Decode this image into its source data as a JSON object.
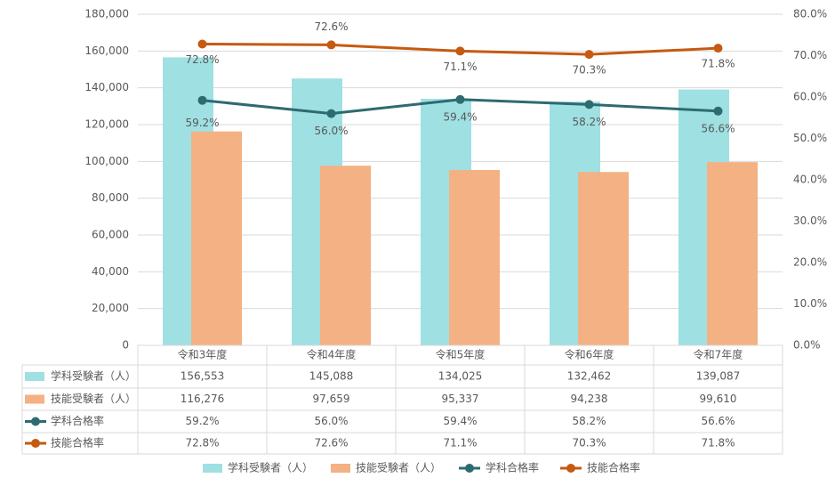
{
  "chart_data": {
    "type": "bar_line_table",
    "categories": [
      "令和3年度",
      "令和4年度",
      "令和5年度",
      "令和6年度",
      "令和7年度"
    ],
    "series": [
      {
        "name": "学科受験者（人）",
        "type": "bar",
        "color": "#9fe0e3",
        "values": [
          156553,
          145088,
          134025,
          132462,
          139087
        ],
        "value_labels": [
          "156,553",
          "145,088",
          "134,025",
          "132,462",
          "139,087"
        ]
      },
      {
        "name": "技能受験者（人）",
        "type": "bar",
        "color": "#f4b183",
        "values": [
          116276,
          97659,
          95337,
          94238,
          99610
        ],
        "value_labels": [
          "116,276",
          "97,659",
          "95,337",
          "94,238",
          "99,610"
        ]
      },
      {
        "name": "学科合格率",
        "type": "line",
        "axis": "y2",
        "color": "#2e6b70",
        "values": [
          59.2,
          56.0,
          59.4,
          58.2,
          56.6
        ],
        "value_labels": [
          "59.2%",
          "56.0%",
          "59.4%",
          "58.2%",
          "56.6%"
        ]
      },
      {
        "name": "技能合格率",
        "type": "line",
        "axis": "y2",
        "color": "#c55a11",
        "values": [
          72.8,
          72.6,
          71.1,
          70.3,
          71.8
        ],
        "value_labels": [
          "72.8%",
          "72.6%",
          "71.1%",
          "70.3%",
          "71.8%"
        ]
      }
    ],
    "ylim": [
      0,
      180000
    ],
    "yticks": [
      0,
      {
        "value": 20000,
        "label": "20,000"
      },
      {
        "value": 40000,
        "label": "40,000"
      },
      {
        "value": 60000,
        "label": "60,000"
      },
      {
        "value": 80000,
        "label": "80,000"
      },
      {
        "value": 100000,
        "label": "100,000"
      },
      {
        "value": 120000,
        "label": "120,000"
      },
      {
        "value": 140000,
        "label": "140,000"
      },
      {
        "value": 160000,
        "label": "160,000"
      },
      {
        "value": 180000,
        "label": "180,000"
      }
    ],
    "y2lim": [
      0,
      80
    ],
    "y2ticks": [
      {
        "value": 0,
        "label": "0.0%"
      },
      {
        "value": 10,
        "label": "10.0%"
      },
      {
        "value": 20,
        "label": "20.0%"
      },
      {
        "value": 30,
        "label": "30.0%"
      },
      {
        "value": 40,
        "label": "40.0%"
      },
      {
        "value": 50,
        "label": "50.0%"
      },
      {
        "value": 60,
        "label": "60.0%"
      },
      {
        "value": 70,
        "label": "70.0%"
      },
      {
        "value": 80,
        "label": "80.0%"
      }
    ],
    "grid": true
  }
}
